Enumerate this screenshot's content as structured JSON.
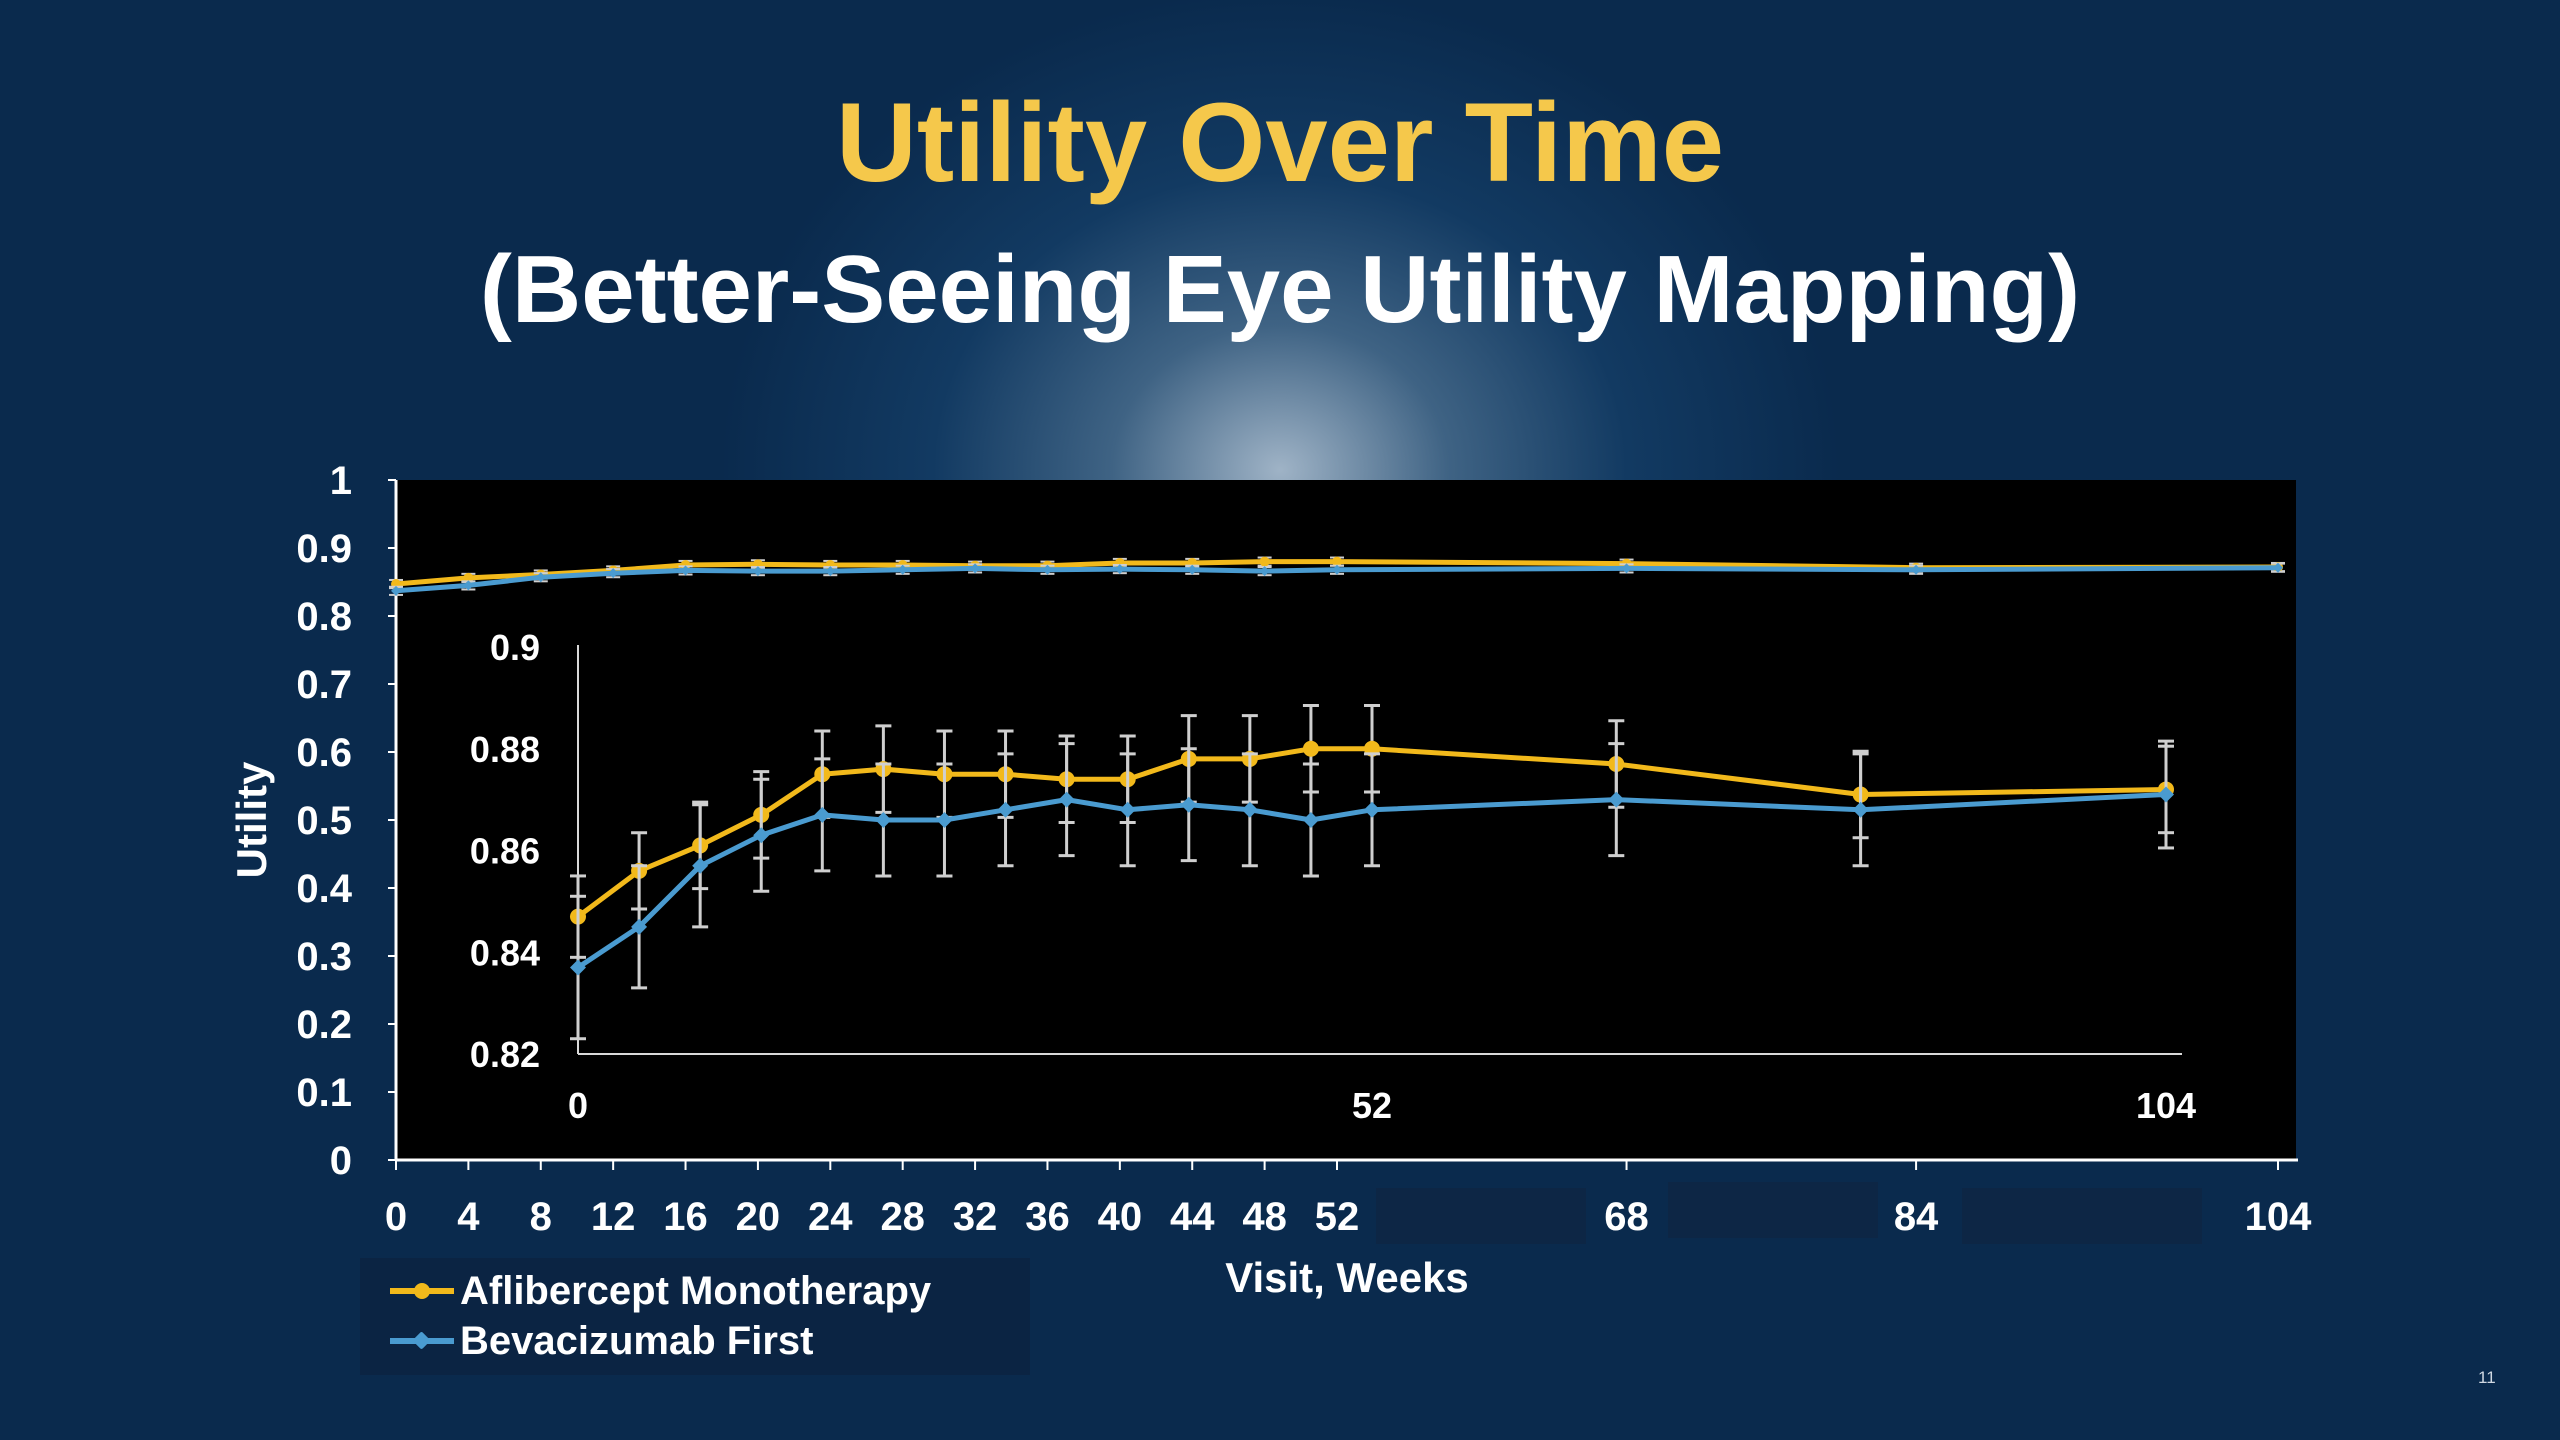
{
  "slide": {
    "title": "Utility Over Time",
    "subtitle": "(Better-Seeing Eye Utility Mapping)",
    "page_number": "11"
  },
  "colors": {
    "title": "#f5c84b",
    "aflibercept": "#f2b91b",
    "bevacizumab": "#4a9bd0",
    "plot_background": "#000000",
    "axis_text": "#ffffff"
  },
  "chart_data": [
    {
      "type": "line",
      "role": "main",
      "xlabel": "Visit, Weeks",
      "ylabel": "Utility",
      "x_ticks": [
        "0",
        "4",
        "8",
        "12",
        "16",
        "20",
        "24",
        "28",
        "32",
        "36",
        "40",
        "44",
        "48",
        "52",
        "68",
        "84",
        "104"
      ],
      "y_ticks": [
        "0",
        "0.1",
        "0.2",
        "0.3",
        "0.4",
        "0.5",
        "0.6",
        "0.7",
        "0.8",
        "0.9",
        "1"
      ],
      "xlim": [
        0,
        104
      ],
      "ylim": [
        0,
        1
      ],
      "grid": false,
      "error_bars": true,
      "legend_position": "bottom-left",
      "x": [
        0,
        4,
        8,
        12,
        16,
        20,
        24,
        28,
        32,
        36,
        40,
        44,
        48,
        52,
        68,
        84,
        104
      ],
      "series": [
        {
          "name": "Aflibercept Monotherapy",
          "color": "#f2b91b",
          "marker": "circle",
          "values": [
            0.847,
            0.856,
            0.861,
            0.867,
            0.875,
            0.876,
            0.875,
            0.875,
            0.874,
            0.874,
            0.878,
            0.878,
            0.88,
            0.88,
            0.877,
            0.871,
            0.872
          ],
          "error": [
            0.006,
            0.006,
            0.006,
            0.006,
            0.006,
            0.006,
            0.006,
            0.006,
            0.006,
            0.006,
            0.006,
            0.006,
            0.006,
            0.006,
            0.006,
            0.006,
            0.006
          ]
        },
        {
          "name": "Bevacizumab First",
          "color": "#4a9bd0",
          "marker": "diamond",
          "values": [
            0.837,
            0.845,
            0.857,
            0.863,
            0.867,
            0.866,
            0.866,
            0.868,
            0.87,
            0.868,
            0.869,
            0.868,
            0.866,
            0.868,
            0.87,
            0.868,
            0.871
          ],
          "error": [
            0.006,
            0.006,
            0.006,
            0.006,
            0.006,
            0.006,
            0.006,
            0.006,
            0.006,
            0.006,
            0.006,
            0.006,
            0.006,
            0.006,
            0.006,
            0.006,
            0.006
          ]
        }
      ]
    },
    {
      "type": "line",
      "role": "inset",
      "x_ticks": [
        "0",
        "52",
        "104"
      ],
      "y_ticks": [
        "0.82",
        "0.84",
        "0.86",
        "0.88",
        "0.9"
      ],
      "xlim": [
        0,
        104
      ],
      "ylim": [
        0.82,
        0.9
      ],
      "grid": false,
      "error_bars": true,
      "x": [
        0,
        4,
        8,
        12,
        16,
        20,
        24,
        28,
        32,
        36,
        40,
        44,
        48,
        52,
        68,
        84,
        104
      ],
      "series": [
        {
          "name": "Aflibercept Monotherapy",
          "color": "#f2b91b",
          "marker": "circle",
          "values": [
            0.847,
            0.856,
            0.861,
            0.867,
            0.875,
            0.876,
            0.875,
            0.875,
            0.874,
            0.874,
            0.878,
            0.878,
            0.88,
            0.88,
            0.877,
            0.871,
            0.872
          ],
          "error": [
            0.008,
            0.0075,
            0.0085,
            0.0085,
            0.0085,
            0.0085,
            0.0085,
            0.0085,
            0.0085,
            0.0085,
            0.0085,
            0.0085,
            0.0085,
            0.0085,
            0.0085,
            0.0085,
            0.0085
          ]
        },
        {
          "name": "Bevacizumab First",
          "color": "#4a9bd0",
          "marker": "diamond",
          "values": [
            0.837,
            0.845,
            0.857,
            0.863,
            0.867,
            0.866,
            0.866,
            0.868,
            0.87,
            0.868,
            0.869,
            0.868,
            0.866,
            0.868,
            0.87,
            0.868,
            0.871
          ],
          "error": [
            0.014,
            0.012,
            0.012,
            0.011,
            0.011,
            0.011,
            0.011,
            0.011,
            0.011,
            0.011,
            0.011,
            0.011,
            0.011,
            0.011,
            0.011,
            0.011,
            0.0105
          ]
        }
      ]
    }
  ]
}
